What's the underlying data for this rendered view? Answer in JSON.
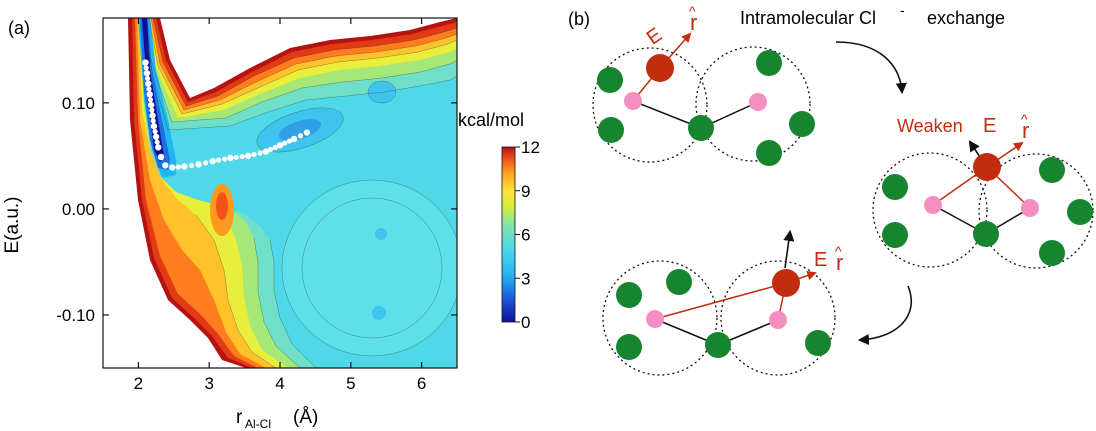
{
  "panel_a": {
    "label": "(a)",
    "ylabel": "E(a.u.)",
    "xlabel_main": "r",
    "xlabel_sub": "Al-Cl",
    "xlabel_unit": "(Å)",
    "colorbar_title": "kcal/mol",
    "colorbar_ticks": [
      "0",
      "3",
      "6",
      "9",
      "12"
    ],
    "colormap": [
      "#0b0f9a",
      "#1f4fd8",
      "#22b6f0",
      "#4fd8e8",
      "#7fe3b0",
      "#d9ef3a",
      "#ffe23a",
      "#ffa21f",
      "#f2531b",
      "#b51212"
    ]
  },
  "chart_data": {
    "type": "heatmap",
    "title": "",
    "xlabel": "r_Al-Cl (Å)",
    "ylabel": "E(a.u.)",
    "xlim": [
      1.5,
      6.5
    ],
    "ylim": [
      -0.15,
      0.18
    ],
    "x_ticks": [
      2,
      3,
      4,
      5,
      6
    ],
    "y_ticks": [
      0.1,
      0.0,
      -0.1
    ],
    "y_tick_labels": [
      "0.10",
      "0.00",
      "-0.10"
    ],
    "colorbar": {
      "label": "kcal/mol",
      "range": [
        0,
        12
      ],
      "ticks": [
        0,
        3,
        6,
        9,
        12
      ]
    },
    "minimum_path": {
      "x": [
        2.1,
        2.12,
        2.14,
        2.16,
        2.18,
        2.2,
        2.22,
        2.25,
        2.28,
        2.32,
        2.38,
        2.48,
        2.65,
        2.85,
        3.05,
        3.3,
        3.55,
        3.8,
        4.0,
        4.2,
        4.38
      ],
      "y": [
        0.138,
        0.128,
        0.118,
        0.108,
        0.098,
        0.088,
        0.078,
        0.068,
        0.058,
        0.049,
        0.041,
        0.039,
        0.04,
        0.042,
        0.045,
        0.048,
        0.05,
        0.054,
        0.06,
        0.066,
        0.072
      ]
    }
  },
  "panel_b": {
    "label": "(b)",
    "title_text": "Intramolecular Cl",
    "title_sup": "-",
    "title_tail": "exchange",
    "weaken": "Weaken",
    "e_label": "E",
    "r_label": "r",
    "r_hat": "^",
    "colors": {
      "green": "#17852f",
      "pink": "#f58fc1",
      "center": "#c22d0e",
      "arrow_red": "#c22d0e"
    }
  }
}
